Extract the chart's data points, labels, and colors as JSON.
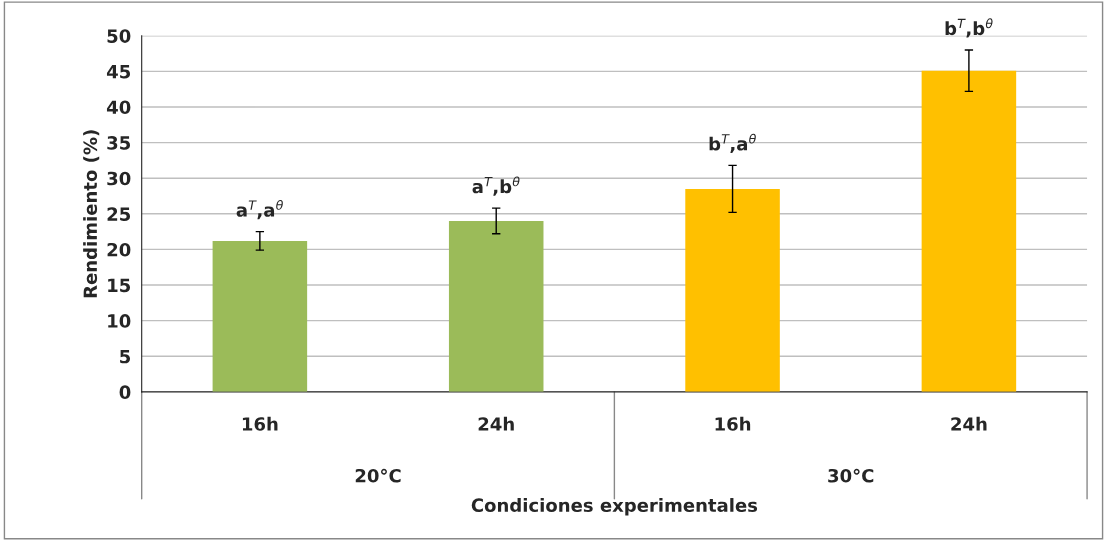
{
  "chart_data": {
    "type": "bar",
    "categories": [
      "16h",
      "24h",
      "16h",
      "24h"
    ],
    "values": [
      21.2,
      24.0,
      28.5,
      45.1
    ],
    "colors": [
      "#9bbb59",
      "#9bbb59",
      "#ffc000",
      "#ffc000"
    ],
    "errors": [
      1.3,
      1.8,
      3.3,
      2.9
    ],
    "ylim": [
      0,
      50
    ],
    "yticks": [
      0,
      5,
      10,
      15,
      20,
      25,
      30,
      35,
      40,
      45,
      50
    ],
    "ylabel": "Rendimiento (%)",
    "xlabel": "Condiciones experimentales",
    "annotations": [
      "a$^{T}$,a$^{θ}$",
      "a$^{T}$,b$^{θ}$",
      "b$^{T}$,a$^{θ}$",
      "b$^{T}$,b$^{θ}$",
      "20°C",
      "30°C"
    ],
    "grid": "y"
  }
}
